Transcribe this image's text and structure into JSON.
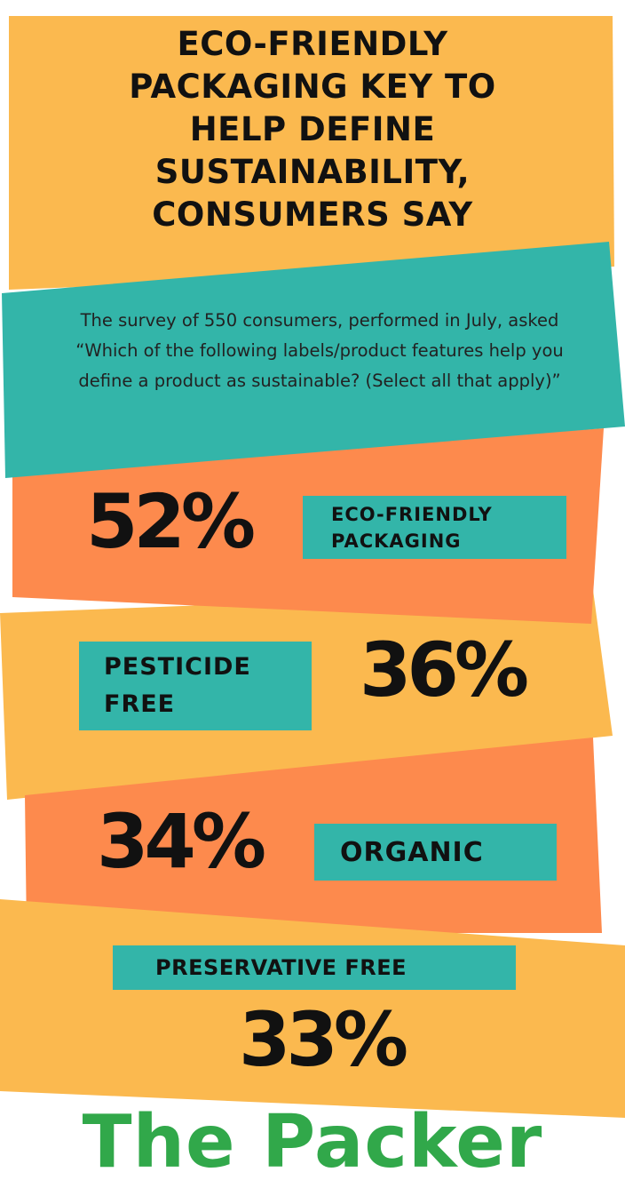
{
  "title_lines": [
    "ECO-FRIENDLY",
    "PACKAGING KEY TO",
    "HELP DEFINE",
    "SUSTAINABILITY,",
    "CONSUMERS SAY"
  ],
  "subtitle_lines": [
    "The survey of 550 consumers, performed in July, asked",
    "“Which of the following labels/product features help you",
    "define a product as sustainable? (Select all that apply)”"
  ],
  "colors": {
    "yellow": "#fbb94f",
    "orange": "#fd8a4d",
    "teal": "#33b5a9",
    "text": "#111111",
    "logo": "#31a84a"
  },
  "chart_data": {
    "type": "bar",
    "categories": [
      "ECO-FRIENDLY PACKAGING",
      "PESTICIDE FREE",
      "ORGANIC",
      "PRESERVATIVE FREE"
    ],
    "values": [
      52,
      36,
      34,
      33
    ],
    "value_labels": [
      "52%",
      "36%",
      "34%",
      "33%"
    ],
    "label_lines": [
      [
        "ECO-FRIENDLY",
        "PACKAGING"
      ],
      [
        "PESTICIDE",
        "FREE"
      ],
      [
        "ORGANIC"
      ],
      [
        "PRESERVATIVE FREE"
      ]
    ],
    "unit": "%"
  },
  "logo_text": "The Packer"
}
